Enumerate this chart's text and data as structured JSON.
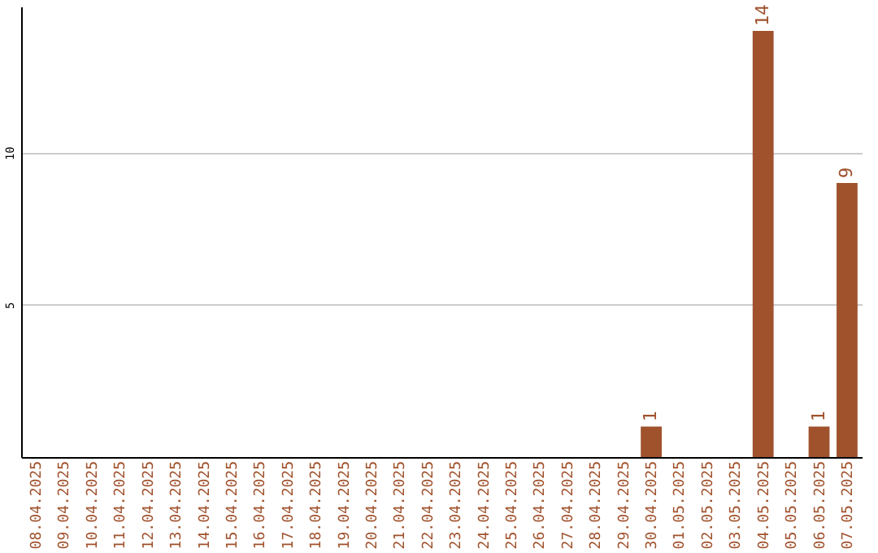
{
  "chart_data": {
    "type": "bar",
    "categories": [
      "08.04.2025",
      "09.04.2025",
      "10.04.2025",
      "11.04.2025",
      "12.04.2025",
      "13.04.2025",
      "14.04.2025",
      "15.04.2025",
      "16.04.2025",
      "17.04.2025",
      "18.04.2025",
      "19.04.2025",
      "20.04.2025",
      "21.04.2025",
      "22.04.2025",
      "23.04.2025",
      "24.04.2025",
      "25.04.2025",
      "26.04.2025",
      "27.04.2025",
      "28.04.2025",
      "29.04.2025",
      "30.04.2025",
      "01.05.2025",
      "02.05.2025",
      "03.05.2025",
      "04.05.2025",
      "05.05.2025",
      "06.05.2025",
      "07.05.2025"
    ],
    "values": [
      0,
      0,
      0,
      0,
      0,
      0,
      0,
      0,
      0,
      0,
      0,
      0,
      0,
      0,
      0,
      0,
      0,
      0,
      0,
      0,
      0,
      0,
      1,
      0,
      0,
      0,
      14,
      0,
      1,
      9
    ],
    "value_labels": [
      null,
      null,
      null,
      null,
      null,
      null,
      null,
      null,
      null,
      null,
      null,
      null,
      null,
      null,
      null,
      null,
      null,
      null,
      null,
      null,
      null,
      null,
      "1",
      null,
      null,
      null,
      "14",
      null,
      "1",
      "9"
    ],
    "color": "#a0522d",
    "ylim": [
      0,
      14.8
    ],
    "yticks": [
      5,
      10
    ],
    "grid": "y"
  }
}
